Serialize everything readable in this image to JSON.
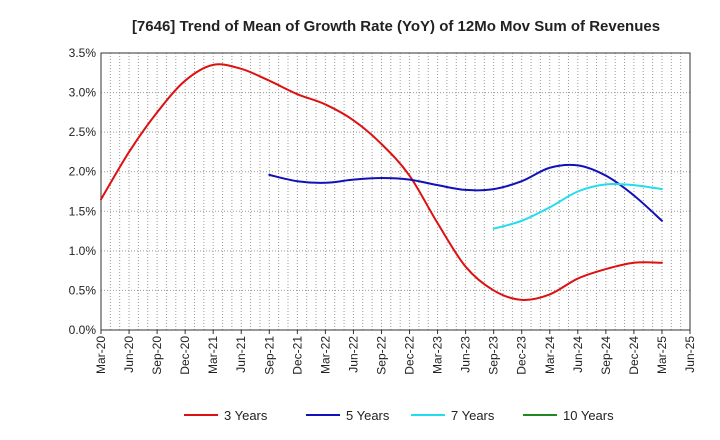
{
  "chart_data": {
    "type": "line",
    "title": "[7646]  Trend of Mean of Growth Rate (YoY) of 12Mo Mov Sum of Revenues",
    "xlabel": "",
    "ylabel": "",
    "categories": [
      "Mar-20",
      "Jun-20",
      "Sep-20",
      "Dec-20",
      "Mar-21",
      "Jun-21",
      "Sep-21",
      "Dec-21",
      "Mar-22",
      "Jun-22",
      "Sep-22",
      "Dec-22",
      "Mar-23",
      "Jun-23",
      "Sep-23",
      "Dec-23",
      "Mar-24",
      "Jun-24",
      "Sep-24",
      "Dec-24",
      "Mar-25",
      "Jun-25"
    ],
    "ylim": [
      0,
      3.5
    ],
    "yticks": [
      0,
      0.5,
      1.0,
      1.5,
      2.0,
      2.5,
      3.0,
      3.5
    ],
    "ytick_labels": [
      "0.0%",
      "0.5%",
      "1.0%",
      "1.5%",
      "2.0%",
      "2.5%",
      "3.0%",
      "3.5%"
    ],
    "grid": true,
    "legend_position": "bottom",
    "series": [
      {
        "name": "3 Years",
        "color": "#dd1111",
        "points": [
          [
            0,
            1.65
          ],
          [
            1,
            2.25
          ],
          [
            2,
            2.75
          ],
          [
            3,
            3.15
          ],
          [
            4,
            3.35
          ],
          [
            5,
            3.3
          ],
          [
            6,
            3.15
          ],
          [
            7,
            2.98
          ],
          [
            8,
            2.85
          ],
          [
            9,
            2.65
          ],
          [
            10,
            2.35
          ],
          [
            11,
            1.95
          ],
          [
            12,
            1.35
          ],
          [
            13,
            0.8
          ],
          [
            14,
            0.5
          ],
          [
            15,
            0.38
          ],
          [
            16,
            0.45
          ],
          [
            17,
            0.65
          ],
          [
            18,
            0.77
          ],
          [
            19,
            0.85
          ],
          [
            20,
            0.85
          ]
        ]
      },
      {
        "name": "5 Years",
        "color": "#1111bb",
        "points": [
          [
            6,
            1.96
          ],
          [
            7,
            1.88
          ],
          [
            8,
            1.86
          ],
          [
            9,
            1.9
          ],
          [
            10,
            1.92
          ],
          [
            11,
            1.9
          ],
          [
            12,
            1.83
          ],
          [
            13,
            1.77
          ],
          [
            14,
            1.78
          ],
          [
            15,
            1.88
          ],
          [
            16,
            2.05
          ],
          [
            17,
            2.08
          ],
          [
            18,
            1.95
          ],
          [
            19,
            1.7
          ],
          [
            20,
            1.38
          ]
        ]
      },
      {
        "name": "7 Years",
        "color": "#22ddee",
        "points": [
          [
            14,
            1.28
          ],
          [
            15,
            1.38
          ],
          [
            16,
            1.55
          ],
          [
            17,
            1.75
          ],
          [
            18,
            1.84
          ],
          [
            19,
            1.83
          ],
          [
            20,
            1.78
          ]
        ]
      },
      {
        "name": "10 Years",
        "color": "#228822",
        "points": []
      }
    ]
  }
}
